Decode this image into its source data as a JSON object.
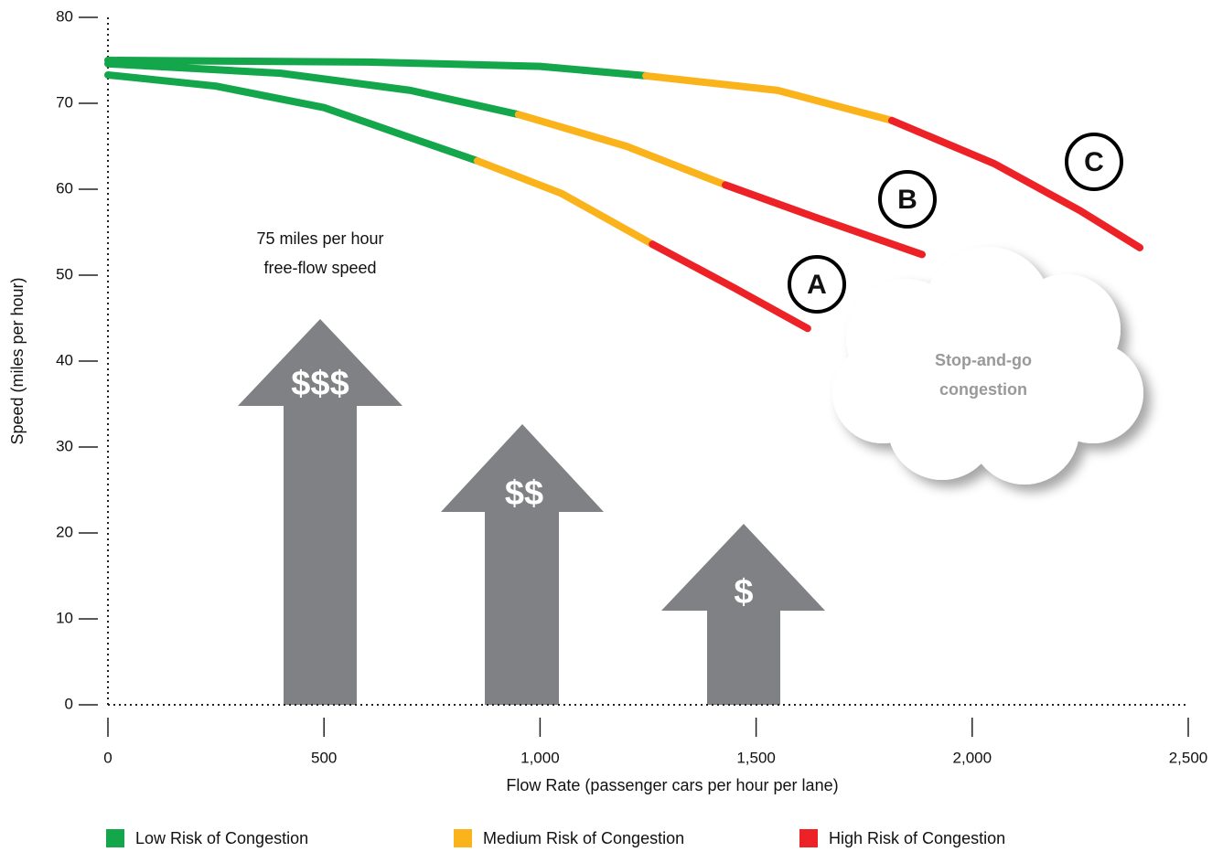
{
  "chart_data": {
    "type": "line",
    "xlabel": "Flow Rate (passenger cars per hour per lane)",
    "ylabel": "Speed (miles per hour)",
    "xlim": [
      0,
      2500
    ],
    "ylim": [
      0,
      80
    ],
    "xticks": [
      0,
      500,
      {
        "value": 1000,
        "label": "1,000"
      },
      {
        "value": 1500,
        "label": "1,500"
      },
      {
        "value": 2000,
        "label": "2,000"
      },
      {
        "value": 2500,
        "label": "2,500"
      }
    ],
    "yticks": [
      0,
      10,
      20,
      30,
      40,
      50,
      60,
      70,
      80
    ],
    "legend": [
      {
        "name": "Low Risk of Congestion",
        "color": "#13a64a"
      },
      {
        "name": "Medium Risk of Congestion",
        "color": "#fbb31b"
      },
      {
        "name": "High Risk of Congestion",
        "color": "#ec2227"
      }
    ],
    "curves": [
      {
        "name": "A",
        "segments": [
          {
            "color": "#13a64a",
            "x": [
              0,
              250,
              500,
              700,
              855
            ],
            "values": [
              73.3,
              72,
              69.5,
              66,
              63.3
            ]
          },
          {
            "color": "#fbb31b",
            "x": [
              855,
              1050,
              1260
            ],
            "values": [
              63.3,
              59.5,
              53.6
            ]
          },
          {
            "color": "#ec2227",
            "x": [
              1260,
              1450,
              1619
            ],
            "values": [
              53.6,
              48.5,
              43.8
            ]
          }
        ]
      },
      {
        "name": "B",
        "segments": [
          {
            "color": "#13a64a",
            "x": [
              0,
              400,
              700,
              950
            ],
            "values": [
              74.6,
              73.5,
              71.5,
              68.7
            ]
          },
          {
            "color": "#fbb31b",
            "x": [
              950,
              1200,
              1429
            ],
            "values": [
              68.7,
              65,
              60.5
            ]
          },
          {
            "color": "#ec2227",
            "x": [
              1429,
              1650,
              1884
            ],
            "values": [
              60.5,
              56.5,
              52.4
            ]
          }
        ]
      },
      {
        "name": "C",
        "segments": [
          {
            "color": "#13a64a",
            "x": [
              0,
              600,
              1000,
              1245
            ],
            "values": [
              75,
              74.8,
              74.3,
              73.2
            ]
          },
          {
            "color": "#fbb31b",
            "x": [
              1245,
              1550,
              1814
            ],
            "values": [
              73.2,
              71.5,
              68
            ]
          },
          {
            "color": "#ec2227",
            "x": [
              1814,
              2050,
              2250,
              2388
            ],
            "values": [
              68,
              63,
              57.5,
              53.2
            ]
          }
        ]
      }
    ],
    "annotation": [
      "75 miles per hour",
      "free-flow speed"
    ],
    "cloud_label": [
      "Stop-and-go",
      "congestion"
    ],
    "arrow_labels": [
      "$$$",
      "$$",
      "$"
    ]
  }
}
